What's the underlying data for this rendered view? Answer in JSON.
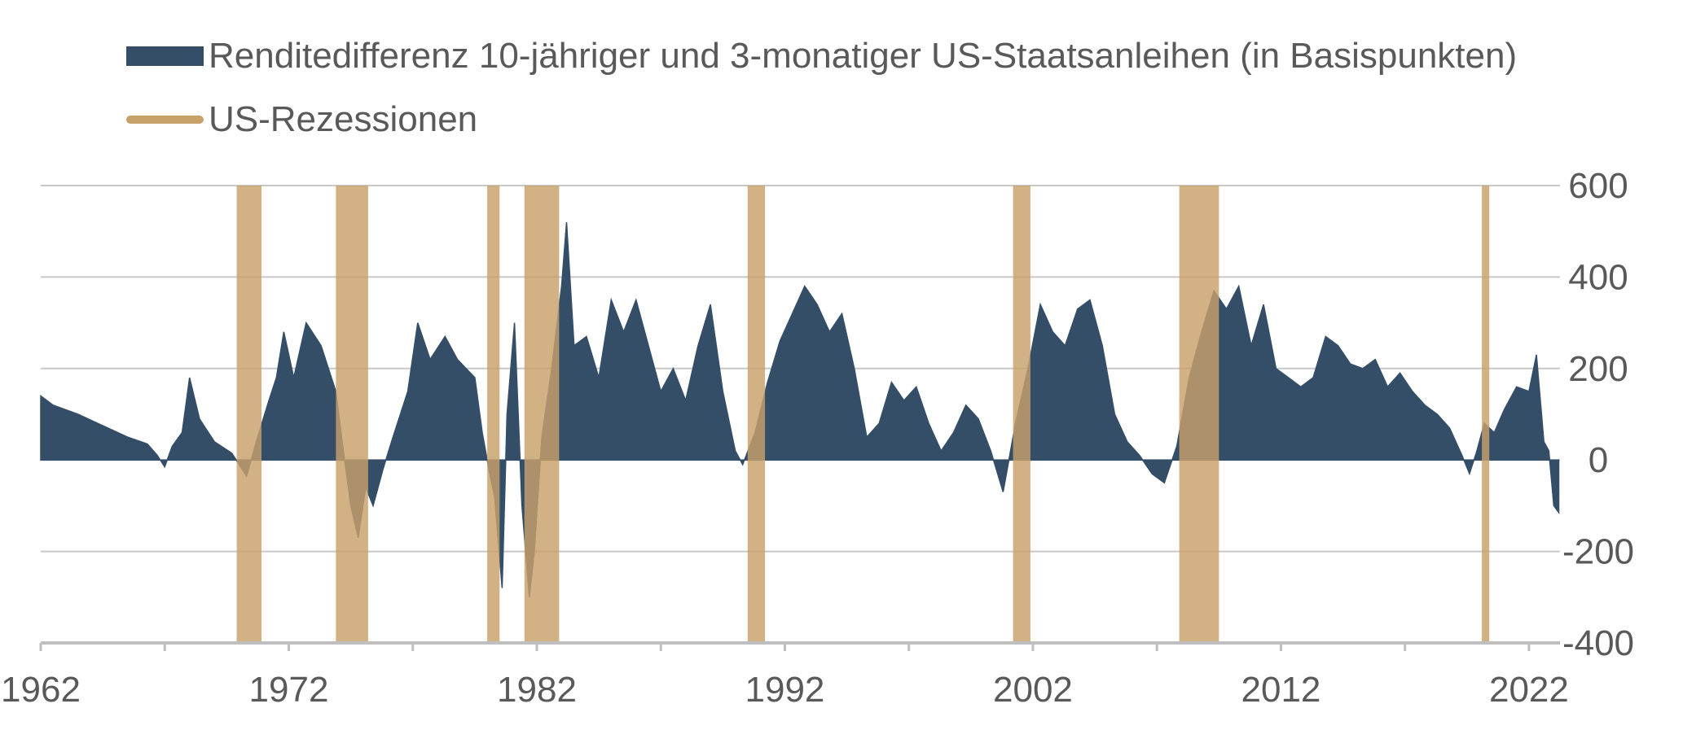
{
  "legend": {
    "series_label": "Renditedifferenz 10-jähriger und 3-monatiger US-Staatsanleihen (in Basispunkten)",
    "recession_label": "US-Rezessionen"
  },
  "colors": {
    "series": "#344e68",
    "recession": "#c8a06a",
    "grid": "#c8c8c8",
    "axis": "#bfbfbf",
    "text": "#595959"
  },
  "chart_data": {
    "type": "area",
    "x_axis": {
      "ticks": [
        "1962",
        "1972",
        "1982",
        "1992",
        "2002",
        "2012",
        "2022"
      ],
      "range": [
        1962,
        2023.25
      ]
    },
    "y_axis": {
      "ticks": [
        "600",
        "400",
        "200",
        "0",
        "-200",
        "-400"
      ],
      "range": [
        -400,
        600
      ],
      "position": "right"
    },
    "grid": "horizontal",
    "legend_position": "top-left",
    "series": [
      {
        "name": "Renditedifferenz 10-jähriger und 3-monatiger US-Staatsanleihen (in Basispunkten)",
        "points": [
          [
            1962.0,
            140
          ],
          [
            1962.5,
            120
          ],
          [
            1963.5,
            100
          ],
          [
            1964.5,
            75
          ],
          [
            1965.5,
            50
          ],
          [
            1966.3,
            35
          ],
          [
            1966.7,
            10
          ],
          [
            1967.0,
            -15
          ],
          [
            1967.3,
            30
          ],
          [
            1967.7,
            60
          ],
          [
            1968.0,
            180
          ],
          [
            1968.4,
            90
          ],
          [
            1969.0,
            40
          ],
          [
            1969.7,
            15
          ],
          [
            1970.3,
            -35
          ],
          [
            1970.8,
            60
          ],
          [
            1971.2,
            130
          ],
          [
            1971.5,
            180
          ],
          [
            1971.8,
            280
          ],
          [
            1972.2,
            180
          ],
          [
            1972.7,
            300
          ],
          [
            1973.3,
            250
          ],
          [
            1973.9,
            150
          ],
          [
            1974.2,
            20
          ],
          [
            1974.5,
            -100
          ],
          [
            1974.8,
            -170
          ],
          [
            1975.1,
            -60
          ],
          [
            1975.4,
            -100
          ],
          [
            1975.8,
            -20
          ],
          [
            1976.2,
            50
          ],
          [
            1976.8,
            150
          ],
          [
            1977.2,
            300
          ],
          [
            1977.7,
            220
          ],
          [
            1978.3,
            270
          ],
          [
            1978.8,
            220
          ],
          [
            1979.5,
            180
          ],
          [
            1979.8,
            60
          ],
          [
            1980.1,
            -30
          ],
          [
            1980.3,
            -80
          ],
          [
            1980.6,
            -280
          ],
          [
            1980.8,
            100
          ],
          [
            1981.1,
            300
          ],
          [
            1981.4,
            -100
          ],
          [
            1981.7,
            -300
          ],
          [
            1981.9,
            -200
          ],
          [
            1982.2,
            50
          ],
          [
            1982.6,
            200
          ],
          [
            1983.0,
            380
          ],
          [
            1983.2,
            520
          ],
          [
            1983.5,
            250
          ],
          [
            1984.0,
            270
          ],
          [
            1984.5,
            180
          ],
          [
            1985.0,
            350
          ],
          [
            1985.5,
            280
          ],
          [
            1986.0,
            350
          ],
          [
            1986.5,
            250
          ],
          [
            1987.0,
            150
          ],
          [
            1987.5,
            200
          ],
          [
            1988.0,
            130
          ],
          [
            1988.5,
            250
          ],
          [
            1989.0,
            340
          ],
          [
            1989.5,
            150
          ],
          [
            1990.0,
            20
          ],
          [
            1990.3,
            -10
          ],
          [
            1990.8,
            60
          ],
          [
            1991.3,
            170
          ],
          [
            1991.8,
            260
          ],
          [
            1992.3,
            320
          ],
          [
            1992.8,
            380
          ],
          [
            1993.3,
            340
          ],
          [
            1993.8,
            280
          ],
          [
            1994.3,
            320
          ],
          [
            1994.8,
            200
          ],
          [
            1995.3,
            50
          ],
          [
            1995.8,
            80
          ],
          [
            1996.3,
            170
          ],
          [
            1996.8,
            130
          ],
          [
            1997.3,
            160
          ],
          [
            1997.8,
            80
          ],
          [
            1998.3,
            20
          ],
          [
            1998.8,
            60
          ],
          [
            1999.3,
            120
          ],
          [
            1999.8,
            90
          ],
          [
            2000.3,
            20
          ],
          [
            2000.8,
            -70
          ],
          [
            2001.3,
            80
          ],
          [
            2001.8,
            200
          ],
          [
            2002.3,
            340
          ],
          [
            2002.8,
            280
          ],
          [
            2003.3,
            250
          ],
          [
            2003.8,
            330
          ],
          [
            2004.3,
            350
          ],
          [
            2004.8,
            250
          ],
          [
            2005.3,
            100
          ],
          [
            2005.8,
            40
          ],
          [
            2006.3,
            10
          ],
          [
            2006.8,
            -30
          ],
          [
            2007.3,
            -50
          ],
          [
            2007.8,
            30
          ],
          [
            2008.3,
            180
          ],
          [
            2008.8,
            280
          ],
          [
            2009.3,
            370
          ],
          [
            2009.8,
            330
          ],
          [
            2010.3,
            380
          ],
          [
            2010.8,
            250
          ],
          [
            2011.3,
            340
          ],
          [
            2011.8,
            200
          ],
          [
            2012.3,
            180
          ],
          [
            2012.8,
            160
          ],
          [
            2013.3,
            180
          ],
          [
            2013.8,
            270
          ],
          [
            2014.3,
            250
          ],
          [
            2014.8,
            210
          ],
          [
            2015.3,
            200
          ],
          [
            2015.8,
            220
          ],
          [
            2016.3,
            160
          ],
          [
            2016.8,
            190
          ],
          [
            2017.3,
            150
          ],
          [
            2017.8,
            120
          ],
          [
            2018.3,
            100
          ],
          [
            2018.8,
            70
          ],
          [
            2019.3,
            10
          ],
          [
            2019.6,
            -30
          ],
          [
            2019.9,
            20
          ],
          [
            2020.2,
            80
          ],
          [
            2020.6,
            60
          ],
          [
            2021.0,
            110
          ],
          [
            2021.5,
            160
          ],
          [
            2022.0,
            150
          ],
          [
            2022.3,
            230
          ],
          [
            2022.6,
            40
          ],
          [
            2022.8,
            20
          ],
          [
            2023.0,
            -100
          ],
          [
            2023.2,
            -115
          ]
        ]
      }
    ],
    "recessions": [
      [
        1969.9,
        1970.9
      ],
      [
        1973.9,
        1975.2
      ],
      [
        1980.0,
        1980.5
      ],
      [
        1981.5,
        1982.9
      ],
      [
        1990.5,
        1991.2
      ],
      [
        2001.2,
        2001.9
      ],
      [
        2007.9,
        2009.5
      ],
      [
        2020.1,
        2020.4
      ]
    ]
  }
}
